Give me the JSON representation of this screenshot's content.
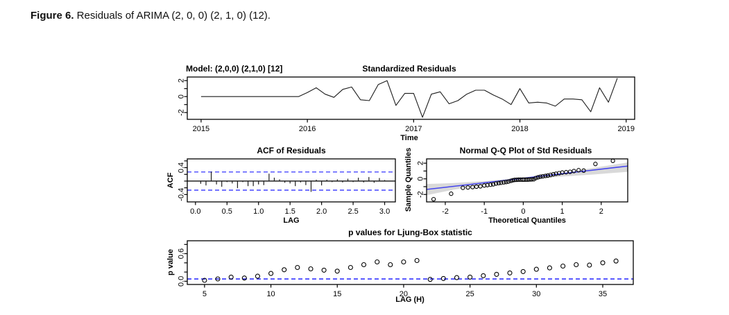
{
  "caption": {
    "label": "Figure 6.",
    "text": " Residuals of ARIMA (2, 0, 0) (2, 1, 0) (12)."
  },
  "colors": {
    "axis": "#000000",
    "series": "#1c1c1c",
    "zero_line": "#333333",
    "conf_dashed": "#3333ff",
    "qq_line": "#4444ee",
    "band": "#d9d9d9",
    "point_stroke": "#000000"
  },
  "chart_data": [
    {
      "type": "line",
      "name": "standardized-residuals",
      "title": "Standardized Residuals",
      "corner_label": "Model:  (2,0,0) (2,1,0) [12]",
      "xlabel": "Time",
      "x_start": 2015.0,
      "x_step": 0.0833333,
      "values": [
        0,
        0,
        0,
        0,
        0,
        0,
        0,
        0,
        0,
        0,
        0,
        0,
        0.5,
        1.1,
        0.3,
        -0.1,
        0.9,
        1.2,
        -0.4,
        -0.5,
        1.5,
        2.0,
        -1.1,
        0.4,
        0.4,
        -2.6,
        0.3,
        0.6,
        -0.9,
        -0.5,
        0.3,
        0.8,
        0.8,
        0.2,
        -0.3,
        -1.0,
        1.0,
        -0.8,
        -0.7,
        -0.8,
        -1.2,
        -0.3,
        -0.3,
        -0.4,
        -1.9,
        1.1,
        -0.7,
        2.3
      ],
      "xlim": [
        2014.87,
        2019.08
      ],
      "ylim": [
        -2.85,
        2.45
      ],
      "xticks": {
        "values": [
          2015,
          2016,
          2017,
          2018,
          2019
        ],
        "labels": [
          "2015",
          "2016",
          "2017",
          "2018",
          "2019"
        ]
      },
      "yticks": {
        "values": [
          -2,
          -1,
          0,
          1,
          2
        ],
        "labels": [
          "-2",
          "",
          "0",
          "",
          "2"
        ]
      }
    },
    {
      "type": "stem",
      "name": "acf-of-residuals",
      "title": "ACF of Residuals",
      "xlabel": "LAG",
      "ylabel": "ACF",
      "lag_step": 0.0833333,
      "conf_bound": 0.27,
      "values": [
        -0.08,
        -0.13,
        0.28,
        -0.1,
        -0.17,
        -0.03,
        -0.07,
        -0.21,
        -0.03,
        -0.15,
        -0.15,
        -0.1,
        -0.12,
        0.22,
        0.1,
        0.05,
        -0.05,
        -0.07,
        -0.15,
        -0.04,
        -0.12,
        -0.32,
        0.04,
        -0.13,
        0.04,
        -0.03,
        0.05,
        -0.04,
        0.07,
        -0.03,
        0.1,
        -0.04,
        0.12,
        -0.05,
        0.09,
        0.03
      ],
      "xlim": [
        -0.13,
        3.17
      ],
      "ylim": [
        -0.62,
        0.66
      ],
      "xticks": {
        "values": [
          0,
          0.5,
          1,
          1.5,
          2,
          2.5,
          3
        ],
        "labels": [
          "0.0",
          "0.5",
          "1.0",
          "1.5",
          "2.0",
          "2.5",
          "3.0"
        ]
      },
      "yticks": {
        "values": [
          -0.4,
          -0.2,
          0,
          0.2,
          0.4,
          0.6
        ],
        "labels": [
          "-0.4",
          "",
          "",
          "",
          "0.4",
          ""
        ]
      }
    },
    {
      "type": "qq",
      "name": "normal-qq-plot",
      "title": "Normal Q-Q Plot of Std Residuals",
      "xlabel": "Theoretical Quantiles",
      "ylabel": "Sample Quantiles",
      "points": [
        [
          -2.3,
          -2.6
        ],
        [
          -1.85,
          -1.9
        ],
        [
          -1.55,
          -1.15
        ],
        [
          -1.42,
          -1.1
        ],
        [
          -1.3,
          -1.05
        ],
        [
          -1.2,
          -1.0
        ],
        [
          -1.1,
          -0.95
        ],
        [
          -1.0,
          -0.85
        ],
        [
          -0.92,
          -0.8
        ],
        [
          -0.84,
          -0.75
        ],
        [
          -0.77,
          -0.7
        ],
        [
          -0.7,
          -0.6
        ],
        [
          -0.63,
          -0.55
        ],
        [
          -0.57,
          -0.5
        ],
        [
          -0.5,
          -0.45
        ],
        [
          -0.44,
          -0.4
        ],
        [
          -0.38,
          -0.35
        ],
        [
          -0.32,
          -0.25
        ],
        [
          -0.27,
          -0.18
        ],
        [
          -0.22,
          -0.14
        ],
        [
          -0.17,
          -0.12
        ],
        [
          -0.12,
          -0.1
        ],
        [
          -0.07,
          -0.1
        ],
        [
          -0.02,
          -0.1
        ],
        [
          0.02,
          -0.1
        ],
        [
          0.07,
          -0.1
        ],
        [
          0.12,
          -0.09
        ],
        [
          0.17,
          -0.08
        ],
        [
          0.22,
          -0.07
        ],
        [
          0.27,
          -0.05
        ],
        [
          0.32,
          0.1
        ],
        [
          0.38,
          0.2
        ],
        [
          0.44,
          0.28
        ],
        [
          0.5,
          0.32
        ],
        [
          0.57,
          0.38
        ],
        [
          0.63,
          0.42
        ],
        [
          0.7,
          0.5
        ],
        [
          0.77,
          0.58
        ],
        [
          0.84,
          0.65
        ],
        [
          0.92,
          0.72
        ],
        [
          1.0,
          0.8
        ],
        [
          1.1,
          0.85
        ],
        [
          1.2,
          0.9
        ],
        [
          1.3,
          1.0
        ],
        [
          1.42,
          1.1
        ],
        [
          1.55,
          1.05
        ],
        [
          1.85,
          1.9
        ],
        [
          2.3,
          2.3
        ]
      ],
      "fit_line": {
        "slope": 0.58,
        "intercept": 0.08
      },
      "band_upper": [
        [
          -2.48,
          -0.65
        ],
        [
          -1.8,
          -0.55
        ],
        [
          -1.0,
          -0.3
        ],
        [
          -0.3,
          0.02
        ],
        [
          0.3,
          0.32
        ],
        [
          1.0,
          0.78
        ],
        [
          1.8,
          1.4
        ],
        [
          2.68,
          2.1
        ]
      ],
      "band_lower": [
        [
          -2.48,
          -2.1
        ],
        [
          -1.8,
          -1.4
        ],
        [
          -1.0,
          -0.78
        ],
        [
          -0.3,
          -0.32
        ],
        [
          0.3,
          -0.02
        ],
        [
          1.0,
          0.3
        ],
        [
          1.8,
          0.55
        ],
        [
          2.68,
          0.9
        ]
      ],
      "xlim": [
        -2.48,
        2.68
      ],
      "ylim": [
        -2.95,
        2.55
      ],
      "xticks": {
        "values": [
          -2,
          -1,
          0,
          1,
          2
        ],
        "labels": [
          "-2",
          "-1",
          "0",
          "1",
          "2"
        ]
      },
      "yticks": {
        "values": [
          -2,
          -1,
          0,
          1,
          2
        ],
        "labels": [
          "-2",
          "",
          "0",
          "",
          "2"
        ]
      }
    },
    {
      "type": "scatter",
      "name": "ljung-box-pvalues",
      "title": "p values for Ljung-Box statistic",
      "xlabel": "LAG (H)",
      "ylabel": "p value",
      "lag_start": 5,
      "ref_line": 0.05,
      "values": [
        0.02,
        0.05,
        0.09,
        0.07,
        0.11,
        0.17,
        0.25,
        0.3,
        0.27,
        0.24,
        0.22,
        0.3,
        0.36,
        0.42,
        0.36,
        0.42,
        0.45,
        0.04,
        0.06,
        0.08,
        0.09,
        0.12,
        0.15,
        0.18,
        0.21,
        0.26,
        0.29,
        0.33,
        0.36,
        0.35,
        0.4,
        0.44
      ],
      "xlim": [
        3.7,
        37.3
      ],
      "ylim": [
        -0.07,
        0.88
      ],
      "xticks": {
        "values": [
          5,
          10,
          15,
          20,
          25,
          30,
          35
        ],
        "labels": [
          "5",
          "10",
          "15",
          "20",
          "25",
          "30",
          "35"
        ]
      },
      "yticks": {
        "values": [
          0,
          0.2,
          0.4,
          0.6,
          0.8
        ],
        "labels": [
          "0.0",
          "",
          "",
          "0.6",
          ""
        ]
      }
    }
  ]
}
